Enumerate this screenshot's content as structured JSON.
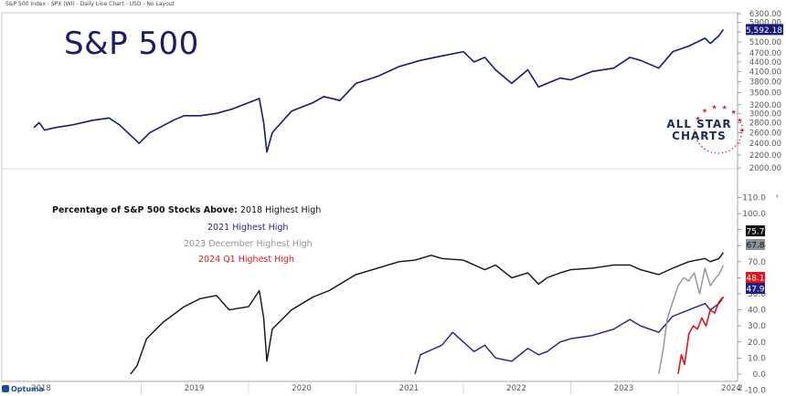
{
  "header": {
    "chart_info": "S&P 500 Index - SPX (WI) - Daily Line Chart - USD - No Layout",
    "title": "S&P 500",
    "brand_line1": "ALL STAR",
    "brand_line2": "CHARTS",
    "footer_brand": "Optuma"
  },
  "colors": {
    "spx": "#151a7a",
    "high2018": "#111111",
    "high2021": "#1f1f8c",
    "dec2023": "#8c939b",
    "q12024": "#e0161b",
    "brand_red": "#d62828",
    "brand_navy": "#1c2a5c"
  },
  "legend": {
    "heading": "Percentage of S&P 500 Stocks Above:",
    "items": [
      "2018 Highest High",
      "2021 Highest High",
      "2023 December Highest High",
      "2024 Q1 Highest High"
    ]
  },
  "chart_data": [
    {
      "type": "line",
      "title": "S&P 500",
      "x_ticks": [
        "2018",
        "2019",
        "2020",
        "2021",
        "2022",
        "2023",
        "2024",
        "2"
      ],
      "y_ticks": [
        "6300.00",
        "5900.00",
        "5500.00",
        "5100.00",
        "4700.00",
        "4400.00",
        "4100.00",
        "3800.00",
        "3500.00",
        "3200.00",
        "3000.00",
        "2800.00",
        "2600.00",
        "2400.00",
        "2200.00",
        "2000.00"
      ],
      "ylim": [
        2000,
        6300
      ],
      "log_scale": true,
      "last_value_label": "5,592.18",
      "series": [
        {
          "x": [
            2018.0,
            2018.05,
            2018.1,
            2018.2,
            2018.35,
            2018.55,
            2018.7,
            2018.8,
            2018.9,
            2018.98,
            2019.08,
            2019.3,
            2019.4,
            2019.55,
            2019.7,
            2019.85,
            2020.0,
            2020.1,
            2020.14,
            2020.17,
            2020.22,
            2020.4,
            2020.6,
            2020.7,
            2020.85,
            2021.0,
            2021.2,
            2021.4,
            2021.6,
            2021.8,
            2022.0,
            2022.1,
            2022.2,
            2022.3,
            2022.45,
            2022.6,
            2022.7,
            2022.78,
            2022.9,
            2023.0,
            2023.2,
            2023.4,
            2023.55,
            2023.65,
            2023.82,
            2023.95,
            2024.1,
            2024.25,
            2024.3,
            2024.38,
            2024.42
          ],
          "values": [
            2700,
            2800,
            2650,
            2700,
            2750,
            2850,
            2900,
            2750,
            2550,
            2400,
            2600,
            2850,
            2950,
            2950,
            3000,
            3100,
            3250,
            3350,
            2800,
            2250,
            2600,
            3050,
            3250,
            3400,
            3300,
            3750,
            3950,
            4250,
            4450,
            4600,
            4750,
            4400,
            4550,
            4150,
            3750,
            4150,
            3650,
            3750,
            3900,
            3850,
            4100,
            4200,
            4550,
            4450,
            4200,
            4750,
            4950,
            5250,
            5050,
            5350,
            5600
          ]
        }
      ]
    },
    {
      "type": "line",
      "title": "",
      "x_ticks": [
        "2018",
        "2019",
        "2020",
        "2021",
        "2022",
        "2023",
        "2024",
        "2"
      ],
      "y_ticks": [
        "110.0",
        "100.0",
        "90.0",
        "80.0",
        "70.0",
        "60.0",
        "50.0",
        "40.0",
        "30.0",
        "20.0",
        "10.0",
        "0.0",
        "-10.0"
      ],
      "ylim": [
        -10,
        110
      ],
      "last_value_labels": [
        "75.7",
        "67.8",
        "48.1",
        "47.9"
      ],
      "series": [
        {
          "name": "2018 Highest High",
          "x": [
            2018.9,
            2018.96,
            2019.05,
            2019.2,
            2019.4,
            2019.55,
            2019.7,
            2019.82,
            2020.0,
            2020.1,
            2020.14,
            2020.17,
            2020.22,
            2020.4,
            2020.6,
            2020.75,
            2020.9,
            2021.0,
            2021.2,
            2021.4,
            2021.55,
            2021.7,
            2021.8,
            2022.0,
            2022.2,
            2022.3,
            2022.45,
            2022.6,
            2022.7,
            2022.78,
            2022.9,
            2023.0,
            2023.2,
            2023.4,
            2023.55,
            2023.65,
            2023.82,
            2023.95,
            2024.1,
            2024.25,
            2024.3,
            2024.38,
            2024.42
          ],
          "values": [
            0,
            5,
            22,
            32,
            42,
            47,
            49,
            40,
            42,
            52,
            35,
            8,
            28,
            40,
            48,
            52,
            58,
            62,
            66,
            70,
            71,
            74,
            72,
            71,
            65,
            68,
            60,
            63,
            56,
            60,
            63,
            65,
            66,
            68,
            68,
            65,
            62,
            66,
            70,
            72,
            70,
            72,
            75.7
          ]
        },
        {
          "name": "2021 Highest High",
          "x": [
            2021.55,
            2021.6,
            2021.7,
            2021.8,
            2021.9,
            2022.0,
            2022.1,
            2022.2,
            2022.3,
            2022.45,
            2022.6,
            2022.7,
            2022.78,
            2022.9,
            2023.0,
            2023.2,
            2023.4,
            2023.55,
            2023.65,
            2023.82,
            2023.95,
            2024.1,
            2024.25,
            2024.3,
            2024.38,
            2024.42
          ],
          "values": [
            0,
            12,
            15,
            18,
            26,
            20,
            14,
            18,
            10,
            8,
            16,
            12,
            14,
            20,
            22,
            24,
            28,
            34,
            30,
            26,
            36,
            40,
            44,
            40,
            44,
            47.9
          ]
        },
        {
          "name": "2023 December Highest High",
          "x": [
            2023.82,
            2023.86,
            2023.9,
            2023.95,
            2024.0,
            2024.05,
            2024.1,
            2024.15,
            2024.2,
            2024.25,
            2024.3,
            2024.35,
            2024.38,
            2024.42
          ],
          "values": [
            0,
            15,
            35,
            45,
            55,
            60,
            58,
            63,
            50,
            66,
            55,
            60,
            62,
            67.8
          ]
        },
        {
          "name": "2024 Q1 Highest High",
          "x": [
            2024.0,
            2024.03,
            2024.06,
            2024.1,
            2024.14,
            2024.18,
            2024.22,
            2024.26,
            2024.3,
            2024.34,
            2024.38,
            2024.42
          ],
          "values": [
            0,
            12,
            6,
            25,
            30,
            28,
            35,
            30,
            40,
            38,
            45,
            48.1
          ]
        }
      ]
    }
  ]
}
